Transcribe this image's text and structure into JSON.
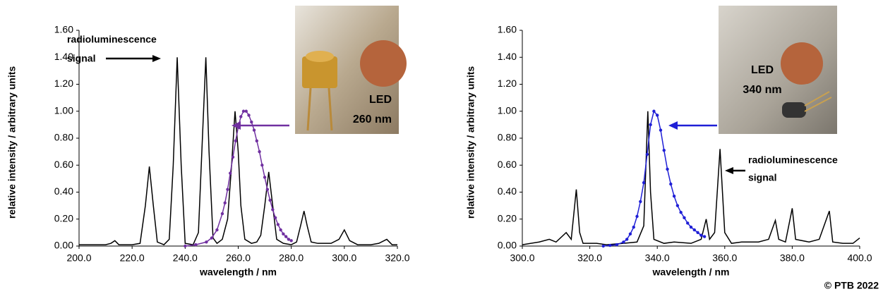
{
  "chart_data": [
    {
      "type": "line",
      "xlabel": "wavelength / nm",
      "ylabel": "relative intensity / arbitrary units",
      "xlim": [
        200,
        320
      ],
      "xticks": [
        {
          "value": 200,
          "label": "200.0"
        },
        {
          "value": 220,
          "label": "220.0"
        },
        {
          "value": 240,
          "label": "240.0"
        },
        {
          "value": 260,
          "label": "260.0"
        },
        {
          "value": 280,
          "label": "280.0"
        },
        {
          "value": 300,
          "label": "300.0"
        },
        {
          "value": 320,
          "label": "320.0"
        }
      ],
      "ylim": [
        0,
        1.6
      ],
      "yticks": [
        {
          "value": 0,
          "label": "0.00"
        },
        {
          "value": 0.2,
          "label": "0.20"
        },
        {
          "value": 0.4,
          "label": "0.40"
        },
        {
          "value": 0.6,
          "label": "0.60"
        },
        {
          "value": 0.8,
          "label": "0.80"
        },
        {
          "value": 1.0,
          "label": "1.00"
        },
        {
          "value": 1.2,
          "label": "1.20"
        },
        {
          "value": 1.4,
          "label": "1.40"
        },
        {
          "value": 1.6,
          "label": "1.60"
        }
      ],
      "annotations": [
        "radioluminescence",
        "signal",
        "LED",
        "260 nm"
      ],
      "series": [
        {
          "color": "#000000",
          "markers": false,
          "x": [
            200,
            205,
            210,
            212,
            213.5,
            215,
            220,
            223,
            225,
            226.5,
            228,
            229.5,
            232,
            234,
            235.5,
            237,
            238.5,
            240,
            243,
            245,
            246.5,
            247.8,
            249,
            250.5,
            252,
            254,
            256,
            257.5,
            258.8,
            260,
            261,
            262.5,
            265,
            267,
            268.5,
            270,
            271.5,
            273,
            274.5,
            277,
            280,
            282,
            283.5,
            284.8,
            286,
            287.5,
            290,
            295,
            298,
            300,
            302,
            305,
            310,
            313,
            316,
            318,
            320
          ],
          "values": [
            0.01,
            0.01,
            0.01,
            0.02,
            0.04,
            0.01,
            0.01,
            0.02,
            0.3,
            0.59,
            0.3,
            0.03,
            0.01,
            0.05,
            0.6,
            1.4,
            0.6,
            0.02,
            0.01,
            0.1,
            0.8,
            1.4,
            0.7,
            0.06,
            0.02,
            0.05,
            0.2,
            0.6,
            1.0,
            0.7,
            0.3,
            0.05,
            0.02,
            0.03,
            0.08,
            0.3,
            0.55,
            0.3,
            0.05,
            0.02,
            0.01,
            0.03,
            0.15,
            0.26,
            0.15,
            0.03,
            0.02,
            0.02,
            0.05,
            0.12,
            0.04,
            0.01,
            0.01,
            0.02,
            0.05,
            0.01,
            0.01
          ]
        },
        {
          "color": "#7030a0",
          "markers": true,
          "x": [
            240,
            244,
            248,
            250,
            252,
            254,
            255,
            256,
            257,
            258,
            259,
            260,
            261,
            262,
            263,
            264,
            265,
            266,
            267,
            268,
            269,
            270,
            271,
            272,
            273,
            274,
            275,
            276,
            277,
            278,
            279,
            280
          ],
          "values": [
            0.0,
            0.01,
            0.03,
            0.06,
            0.12,
            0.24,
            0.32,
            0.42,
            0.54,
            0.66,
            0.78,
            0.88,
            0.96,
            1.0,
            1.0,
            0.97,
            0.92,
            0.86,
            0.78,
            0.7,
            0.6,
            0.51,
            0.42,
            0.34,
            0.27,
            0.21,
            0.16,
            0.12,
            0.09,
            0.07,
            0.05,
            0.04
          ]
        }
      ]
    },
    {
      "type": "line",
      "xlabel": "wavelength / nm",
      "ylabel": "relative intensity / arbitrary units",
      "xlim": [
        300,
        400
      ],
      "xticks": [
        {
          "value": 300,
          "label": "300.0"
        },
        {
          "value": 320,
          "label": "320.0"
        },
        {
          "value": 340,
          "label": "340.0"
        },
        {
          "value": 360,
          "label": "360.0"
        },
        {
          "value": 380,
          "label": "380.0"
        },
        {
          "value": 400,
          "label": "400.0"
        }
      ],
      "ylim": [
        0,
        1.6
      ],
      "yticks": [
        {
          "value": 0,
          "label": "0.00"
        },
        {
          "value": 0.2,
          "label": "0.20"
        },
        {
          "value": 0.4,
          "label": "0.40"
        },
        {
          "value": 0.6,
          "label": "0.60"
        },
        {
          "value": 0.8,
          "label": "0.80"
        },
        {
          "value": 1.0,
          "label": "1.00"
        },
        {
          "value": 1.2,
          "label": "1.20"
        },
        {
          "value": 1.4,
          "label": "1.40"
        },
        {
          "value": 1.6,
          "label": "1.60"
        }
      ],
      "annotations": [
        "radioluminescence",
        "signal",
        "LED",
        "340 nm"
      ],
      "series": [
        {
          "color": "#000000",
          "markers": false,
          "x": [
            300,
            305,
            308,
            310,
            313,
            314.5,
            316,
            317,
            318,
            322,
            325,
            330,
            334,
            336,
            337.2,
            338,
            339,
            342,
            345,
            350,
            353,
            354.5,
            355.5,
            357,
            358.6,
            360,
            362,
            365,
            370,
            373,
            375,
            376,
            378,
            380,
            381,
            385,
            388,
            391,
            392,
            395,
            398,
            400
          ],
          "values": [
            0.01,
            0.03,
            0.05,
            0.03,
            0.1,
            0.05,
            0.42,
            0.1,
            0.02,
            0.02,
            0.01,
            0.02,
            0.03,
            0.15,
            1.0,
            0.4,
            0.05,
            0.02,
            0.03,
            0.02,
            0.05,
            0.2,
            0.05,
            0.1,
            0.72,
            0.1,
            0.02,
            0.03,
            0.03,
            0.05,
            0.19,
            0.05,
            0.03,
            0.28,
            0.05,
            0.03,
            0.05,
            0.26,
            0.03,
            0.02,
            0.02,
            0.06
          ]
        },
        {
          "color": "#1f1fd6",
          "markers": true,
          "x": [
            324,
            326,
            328,
            330,
            331,
            332,
            333,
            334,
            335,
            336,
            337,
            338,
            339,
            340,
            341,
            342,
            343,
            344,
            345,
            346,
            347,
            348,
            349,
            350,
            351,
            352,
            353,
            354
          ],
          "values": [
            0.0,
            0.005,
            0.01,
            0.03,
            0.05,
            0.09,
            0.14,
            0.22,
            0.33,
            0.47,
            0.68,
            0.9,
            1.0,
            0.97,
            0.86,
            0.71,
            0.57,
            0.46,
            0.37,
            0.3,
            0.25,
            0.21,
            0.17,
            0.14,
            0.12,
            0.1,
            0.08,
            0.07
          ]
        }
      ]
    }
  ],
  "credit": "© PTB 2022"
}
